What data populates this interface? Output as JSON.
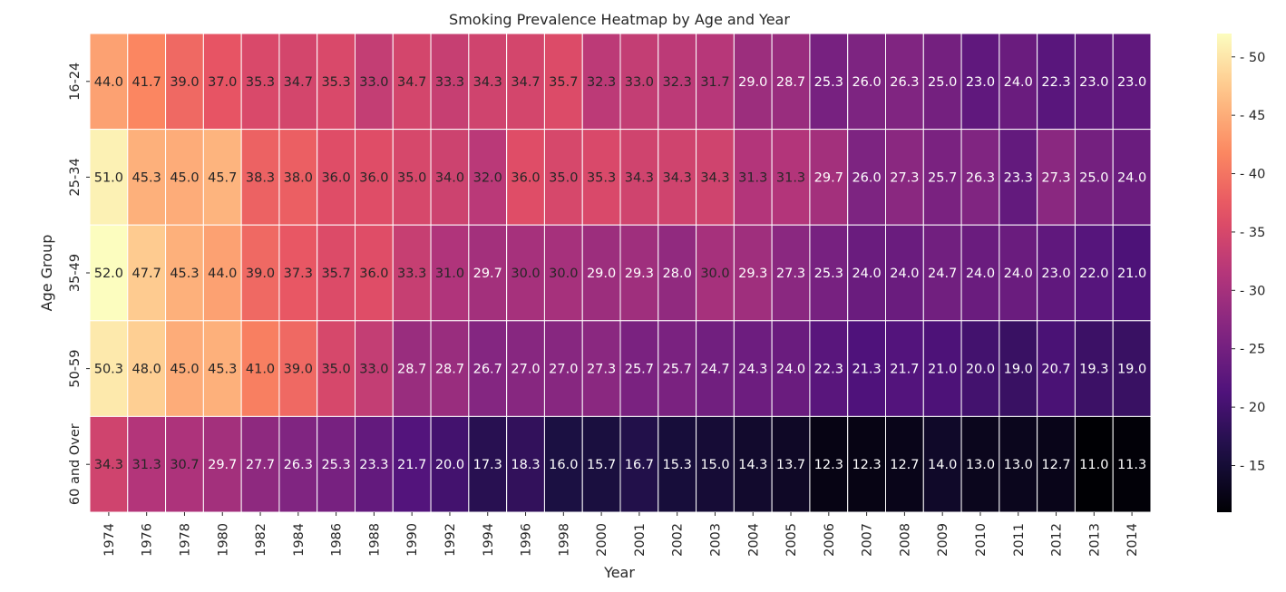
{
  "chart_data": {
    "type": "heatmap",
    "title": "Smoking Prevalence Heatmap by Age and Year",
    "xlabel": "Year",
    "ylabel": "Age Group",
    "x": [
      "1974",
      "1976",
      "1978",
      "1980",
      "1982",
      "1984",
      "1986",
      "1988",
      "1990",
      "1992",
      "1994",
      "1996",
      "1998",
      "2000",
      "2001",
      "2002",
      "2003",
      "2004",
      "2005",
      "2006",
      "2007",
      "2008",
      "2009",
      "2010",
      "2011",
      "2012",
      "2013",
      "2014"
    ],
    "y": [
      "16-24",
      "25-34",
      "35-49",
      "50-59",
      "60 and Over"
    ],
    "values": [
      [
        44.0,
        41.7,
        39.0,
        37.0,
        35.3,
        34.7,
        35.3,
        33.0,
        34.7,
        33.3,
        34.3,
        34.7,
        35.7,
        32.3,
        33.0,
        32.3,
        31.7,
        29.0,
        28.7,
        25.3,
        26.0,
        26.3,
        25.0,
        23.0,
        24.0,
        22.3,
        23.0,
        23.0
      ],
      [
        51.0,
        45.3,
        45.0,
        45.7,
        38.3,
        38.0,
        36.0,
        36.0,
        35.0,
        34.0,
        32.0,
        36.0,
        35.0,
        35.3,
        34.3,
        34.3,
        34.3,
        31.3,
        31.3,
        29.7,
        26.0,
        27.3,
        25.7,
        26.3,
        23.3,
        27.3,
        25.0,
        24.0
      ],
      [
        52.0,
        47.7,
        45.3,
        44.0,
        39.0,
        37.3,
        35.7,
        36.0,
        33.3,
        31.0,
        29.7,
        30.0,
        30.0,
        29.0,
        29.3,
        28.0,
        30.0,
        29.3,
        27.3,
        25.3,
        24.0,
        24.0,
        24.7,
        24.0,
        24.0,
        23.0,
        22.0,
        21.0
      ],
      [
        50.3,
        48.0,
        45.0,
        45.3,
        41.0,
        39.0,
        35.0,
        33.0,
        28.7,
        28.7,
        26.7,
        27.0,
        27.0,
        27.3,
        25.7,
        25.7,
        24.7,
        24.3,
        24.0,
        22.3,
        21.3,
        21.7,
        21.0,
        20.0,
        19.0,
        20.7,
        19.3,
        19.0
      ],
      [
        34.3,
        31.3,
        30.7,
        29.7,
        27.7,
        26.3,
        25.3,
        23.3,
        21.7,
        20.0,
        17.3,
        18.3,
        16.0,
        15.7,
        16.7,
        15.3,
        15.0,
        14.3,
        13.7,
        12.3,
        12.3,
        12.7,
        14.0,
        13.0,
        13.0,
        12.7,
        11.0,
        11.3
      ]
    ],
    "value_format": "0.1f",
    "colormap": "magma",
    "vmin": 11.0,
    "vmax": 52.0,
    "colorbar_ticks": [
      15,
      20,
      25,
      30,
      35,
      40,
      45,
      50
    ],
    "annotation_threshold": 30.0
  }
}
